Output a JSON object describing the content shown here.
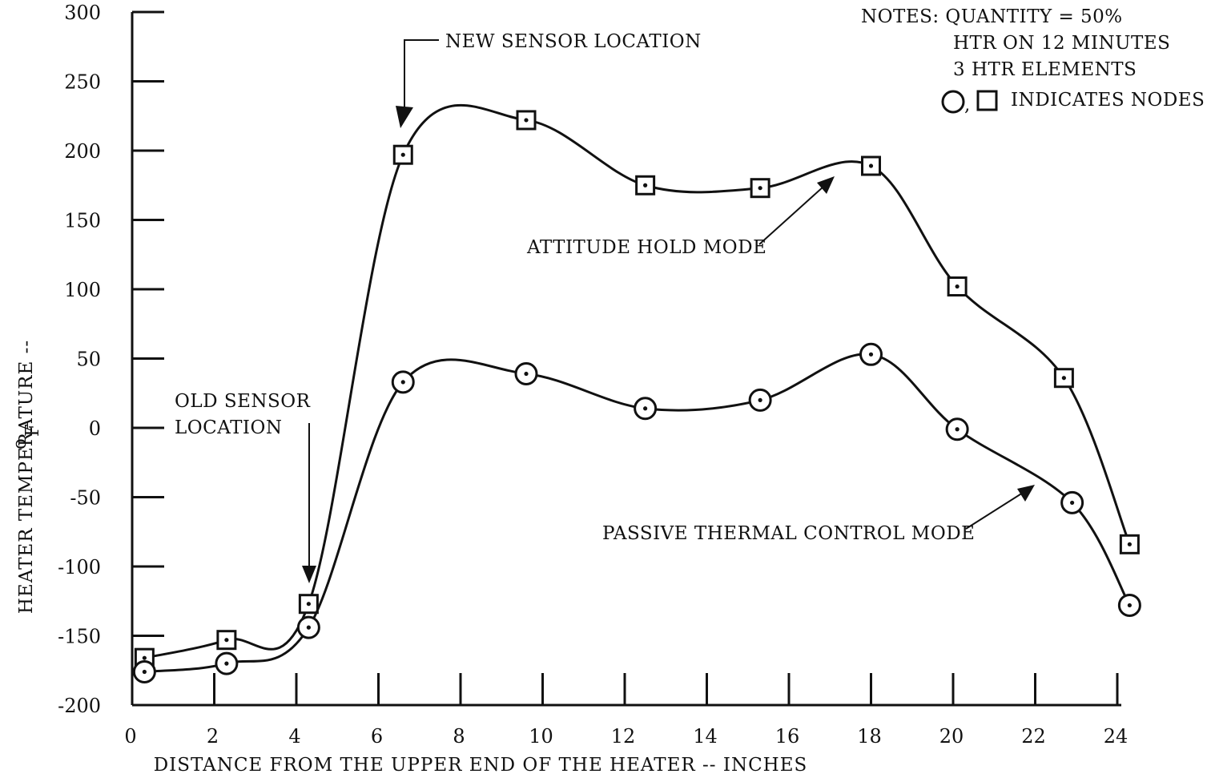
{
  "chart_data": {
    "type": "line",
    "title": "",
    "xlabel": "DISTANCE FROM THE UPPER END OF THE HEATER -- INCHES",
    "ylabel": "HEATER TEMPERATURE -- ",
    "ylabel_unit_degree": "o",
    "ylabel_unit_letter": "F",
    "xlim": [
      0,
      24
    ],
    "ylim": [
      -200,
      300
    ],
    "x_ticks": [
      0,
      2,
      4,
      6,
      8,
      10,
      12,
      14,
      16,
      18,
      20,
      22,
      24
    ],
    "y_ticks": [
      300,
      250,
      200,
      150,
      100,
      50,
      0,
      -50,
      -100,
      -150,
      -200
    ],
    "grid": false,
    "series": [
      {
        "name": "ATTITUDE HOLD MODE",
        "marker": "square",
        "x": [
          0.3,
          2.3,
          4.3,
          6.6,
          9.6,
          12.5,
          15.3,
          18.0,
          20.1,
          22.7,
          24.3
        ],
        "y": [
          -166,
          -153,
          -127,
          197,
          222,
          175,
          173,
          189,
          102,
          36,
          -84
        ]
      },
      {
        "name": "PASSIVE THERMAL CONTROL MODE",
        "marker": "circle",
        "x": [
          0.3,
          2.3,
          4.3,
          6.6,
          9.6,
          12.5,
          15.3,
          18.0,
          20.1,
          22.9,
          24.3
        ],
        "y": [
          -176,
          -170,
          -144,
          33,
          39,
          14,
          20,
          53,
          -1,
          -54,
          -128
        ]
      }
    ],
    "notes": [
      "NOTES: QUANTITY = 50%",
      "HTR ON 12 MINUTES",
      "3 HTR ELEMENTS",
      "INDICATES NODES"
    ],
    "annotations": [
      {
        "text": "NEW SENSOR LOCATION"
      },
      {
        "text": "OLD SENSOR"
      },
      {
        "text": "LOCATION"
      }
    ]
  }
}
